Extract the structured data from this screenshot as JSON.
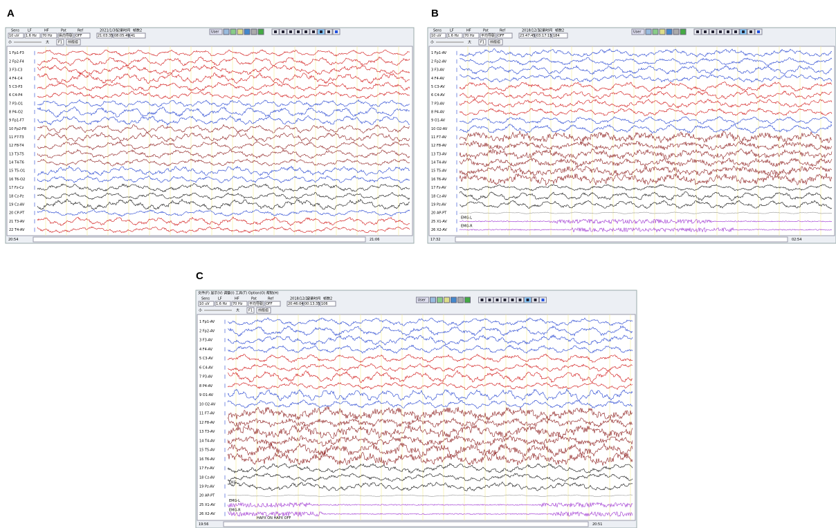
{
  "panels": [
    {
      "label": "A",
      "toolbar": [
        {
          "label": "Sens",
          "value": "10 uV"
        },
        {
          "label": "LF",
          "value": "1.6 Hz"
        },
        {
          "label": "HF",
          "value": "70 Hz"
        },
        {
          "label": "Pat",
          "value": "纵向导联"
        },
        {
          "label": "Ref",
          "value": "OFF"
        },
        {
          "label": "2021/1/30",
          "value": "21:03:35"
        },
        {
          "label": "记录时间",
          "value": "08:05:49"
        },
        {
          "label": "帧数2",
          "value": "41"
        }
      ],
      "user": "User",
      "small": "小",
      "large": "大",
      "f1": "F1",
      "preset": "前版组",
      "channels": [
        {
          "name": "1 Fp1-F3",
          "color": "#d01010"
        },
        {
          "name": "2 Fp2-F4",
          "color": "#d01010"
        },
        {
          "name": "3 F3-C3",
          "color": "#d01010"
        },
        {
          "name": "4 F4-C4",
          "color": "#d01010"
        },
        {
          "name": "5 C3-P3",
          "color": "#d01010"
        },
        {
          "name": "6 C4-P4",
          "color": "#d01010"
        },
        {
          "name": "7 P3-O1",
          "color": "#2040d0"
        },
        {
          "name": "8 P4-O2",
          "color": "#2040d0"
        },
        {
          "name": "9 Fp1-F7",
          "color": "#2040d0"
        },
        {
          "name": "10 Fp2-F8",
          "color": "#8b1a1a"
        },
        {
          "name": "11 F7-T3",
          "color": "#8b1a1a"
        },
        {
          "name": "12 F8-T4",
          "color": "#8b1a1a"
        },
        {
          "name": "13 T3-T5",
          "color": "#8b1a1a"
        },
        {
          "name": "14 T4-T6",
          "color": "#8b1a1a"
        },
        {
          "name": "15 T5-O1",
          "color": "#2040d0"
        },
        {
          "name": "16 T6-O2",
          "color": "#2040d0"
        },
        {
          "name": "17 Fz-Cz",
          "color": "#111111"
        },
        {
          "name": "18 Cz-Pz",
          "color": "#111111"
        },
        {
          "name": "19 Cz-AV",
          "color": "#111111"
        },
        {
          "name": "20 CP-PT",
          "color": "#2040d0"
        },
        {
          "name": "21 T3-AV",
          "color": "#d01010"
        },
        {
          "name": "22 T4-AV",
          "color": "#d01010"
        }
      ],
      "status": [
        "20:54",
        "21:06"
      ]
    },
    {
      "label": "B",
      "toolbar": [
        {
          "label": "Sens",
          "value": "10 uV"
        },
        {
          "label": "LF",
          "value": "1.6 Hz"
        },
        {
          "label": "HF",
          "value": "70 Hz"
        },
        {
          "label": "Pat",
          "value": "平均导联"
        },
        {
          "label": "Ref",
          "value": "OFF"
        },
        {
          "label": "2018/12/3",
          "value": "23:47:45"
        },
        {
          "label": "记录时间",
          "value": "03:17:15"
        },
        {
          "label": "帧数2",
          "value": "184"
        }
      ],
      "user": "User",
      "small": "小",
      "large": "大",
      "f1": "F1",
      "preset": "前版组",
      "channels": [
        {
          "name": "1 Fp1-AV",
          "color": "#2040d0"
        },
        {
          "name": "2 Fp2-AV",
          "color": "#2040d0"
        },
        {
          "name": "3 F3-AV",
          "color": "#2040d0"
        },
        {
          "name": "4 F4-AV",
          "color": "#2040d0"
        },
        {
          "name": "5 C3-AV",
          "color": "#d01010"
        },
        {
          "name": "6 C4-AV",
          "color": "#d01010"
        },
        {
          "name": "7 P3-AV",
          "color": "#d01010"
        },
        {
          "name": "8 P4-AV",
          "color": "#d01010"
        },
        {
          "name": "9 O1-AV",
          "color": "#2040d0"
        },
        {
          "name": "10 O2-AV",
          "color": "#2040d0"
        },
        {
          "name": "11 F7-AV",
          "color": "#8b1a1a"
        },
        {
          "name": "12 F8-AV",
          "color": "#8b1a1a"
        },
        {
          "name": "13 T3-AV",
          "color": "#8b1a1a"
        },
        {
          "name": "14 T4-AV",
          "color": "#8b1a1a"
        },
        {
          "name": "15 T5-AV",
          "color": "#8b1a1a"
        },
        {
          "name": "16 T6-AV",
          "color": "#8b1a1a"
        },
        {
          "name": "17 Fz-AV",
          "color": "#111111"
        },
        {
          "name": "18 Cz-AV",
          "color": "#111111"
        },
        {
          "name": "19 Pz-AV",
          "color": "#111111"
        },
        {
          "name": "20 AP-PT",
          "color": "#999999"
        },
        {
          "name": "25 X1-AV",
          "color": "#9b30d0"
        },
        {
          "name": "26 X2-AV",
          "color": "#9b30d0"
        }
      ],
      "annotations": [
        {
          "text": "EMG-L",
          "channel": 20
        },
        {
          "text": "EMG-R",
          "channel": 21
        }
      ],
      "status": [
        "17:32",
        "02:54"
      ]
    },
    {
      "label": "C",
      "menu": "文件(F)  显示(V)  调整(I)  工具(T)  Option(O)  帮助(H)",
      "toolbar": [
        {
          "label": "Sens",
          "value": "10 uV"
        },
        {
          "label": "LF",
          "value": "1.6 Hz"
        },
        {
          "label": "HF",
          "value": "70 Hz"
        },
        {
          "label": "Pat",
          "value": "平均导联"
        },
        {
          "label": "Ref",
          "value": "OFF"
        },
        {
          "label": "2018/12/27",
          "value": "20:46:04"
        },
        {
          "label": "记录时间",
          "value": "00:13:35"
        },
        {
          "label": "帧数2",
          "value": "106"
        }
      ],
      "user": "User",
      "small": "小",
      "large": "大",
      "f1": "F1",
      "preset": "前版组",
      "channels": [
        {
          "name": "1 Fp1-AV",
          "color": "#2040d0"
        },
        {
          "name": "2 Fp2-AV",
          "color": "#2040d0"
        },
        {
          "name": "3 F3-AV",
          "color": "#2040d0"
        },
        {
          "name": "4 F4-AV",
          "color": "#2040d0"
        },
        {
          "name": "5 C3-AV",
          "color": "#d01010"
        },
        {
          "name": "6 C4-AV",
          "color": "#d01010"
        },
        {
          "name": "7 P3-AV",
          "color": "#d01010"
        },
        {
          "name": "8 P4-AV",
          "color": "#d01010"
        },
        {
          "name": "9 O1-AV",
          "color": "#2040d0"
        },
        {
          "name": "10 O2-AV",
          "color": "#2040d0"
        },
        {
          "name": "11 F7-AV",
          "color": "#8b1a1a"
        },
        {
          "name": "12 F8-AV",
          "color": "#8b1a1a"
        },
        {
          "name": "13 T3-AV",
          "color": "#8b1a1a"
        },
        {
          "name": "14 T4-AV",
          "color": "#8b1a1a"
        },
        {
          "name": "15 T5-AV",
          "color": "#8b1a1a"
        },
        {
          "name": "16 T6-AV",
          "color": "#8b1a1a"
        },
        {
          "name": "17 Fz-AV",
          "color": "#111111"
        },
        {
          "name": "18 Cz-AV",
          "color": "#111111"
        },
        {
          "name": "19 Pz-AV",
          "color": "#111111"
        },
        {
          "name": "20 AP-PT",
          "color": "#999999"
        },
        {
          "name": "25 X1-AV",
          "color": "#9b30d0"
        },
        {
          "name": "26 X2-AV",
          "color": "#9b30d0"
        }
      ],
      "annotations": [
        {
          "text": "EKG",
          "channel": 18
        },
        {
          "text": "EMG-L",
          "channel": 20
        },
        {
          "text": "EMG-R",
          "channel": 21
        },
        {
          "text": "HAPX ON  HAPX OFF",
          "channel": 21
        }
      ],
      "status": [
        "19:56",
        "20:51"
      ]
    }
  ]
}
